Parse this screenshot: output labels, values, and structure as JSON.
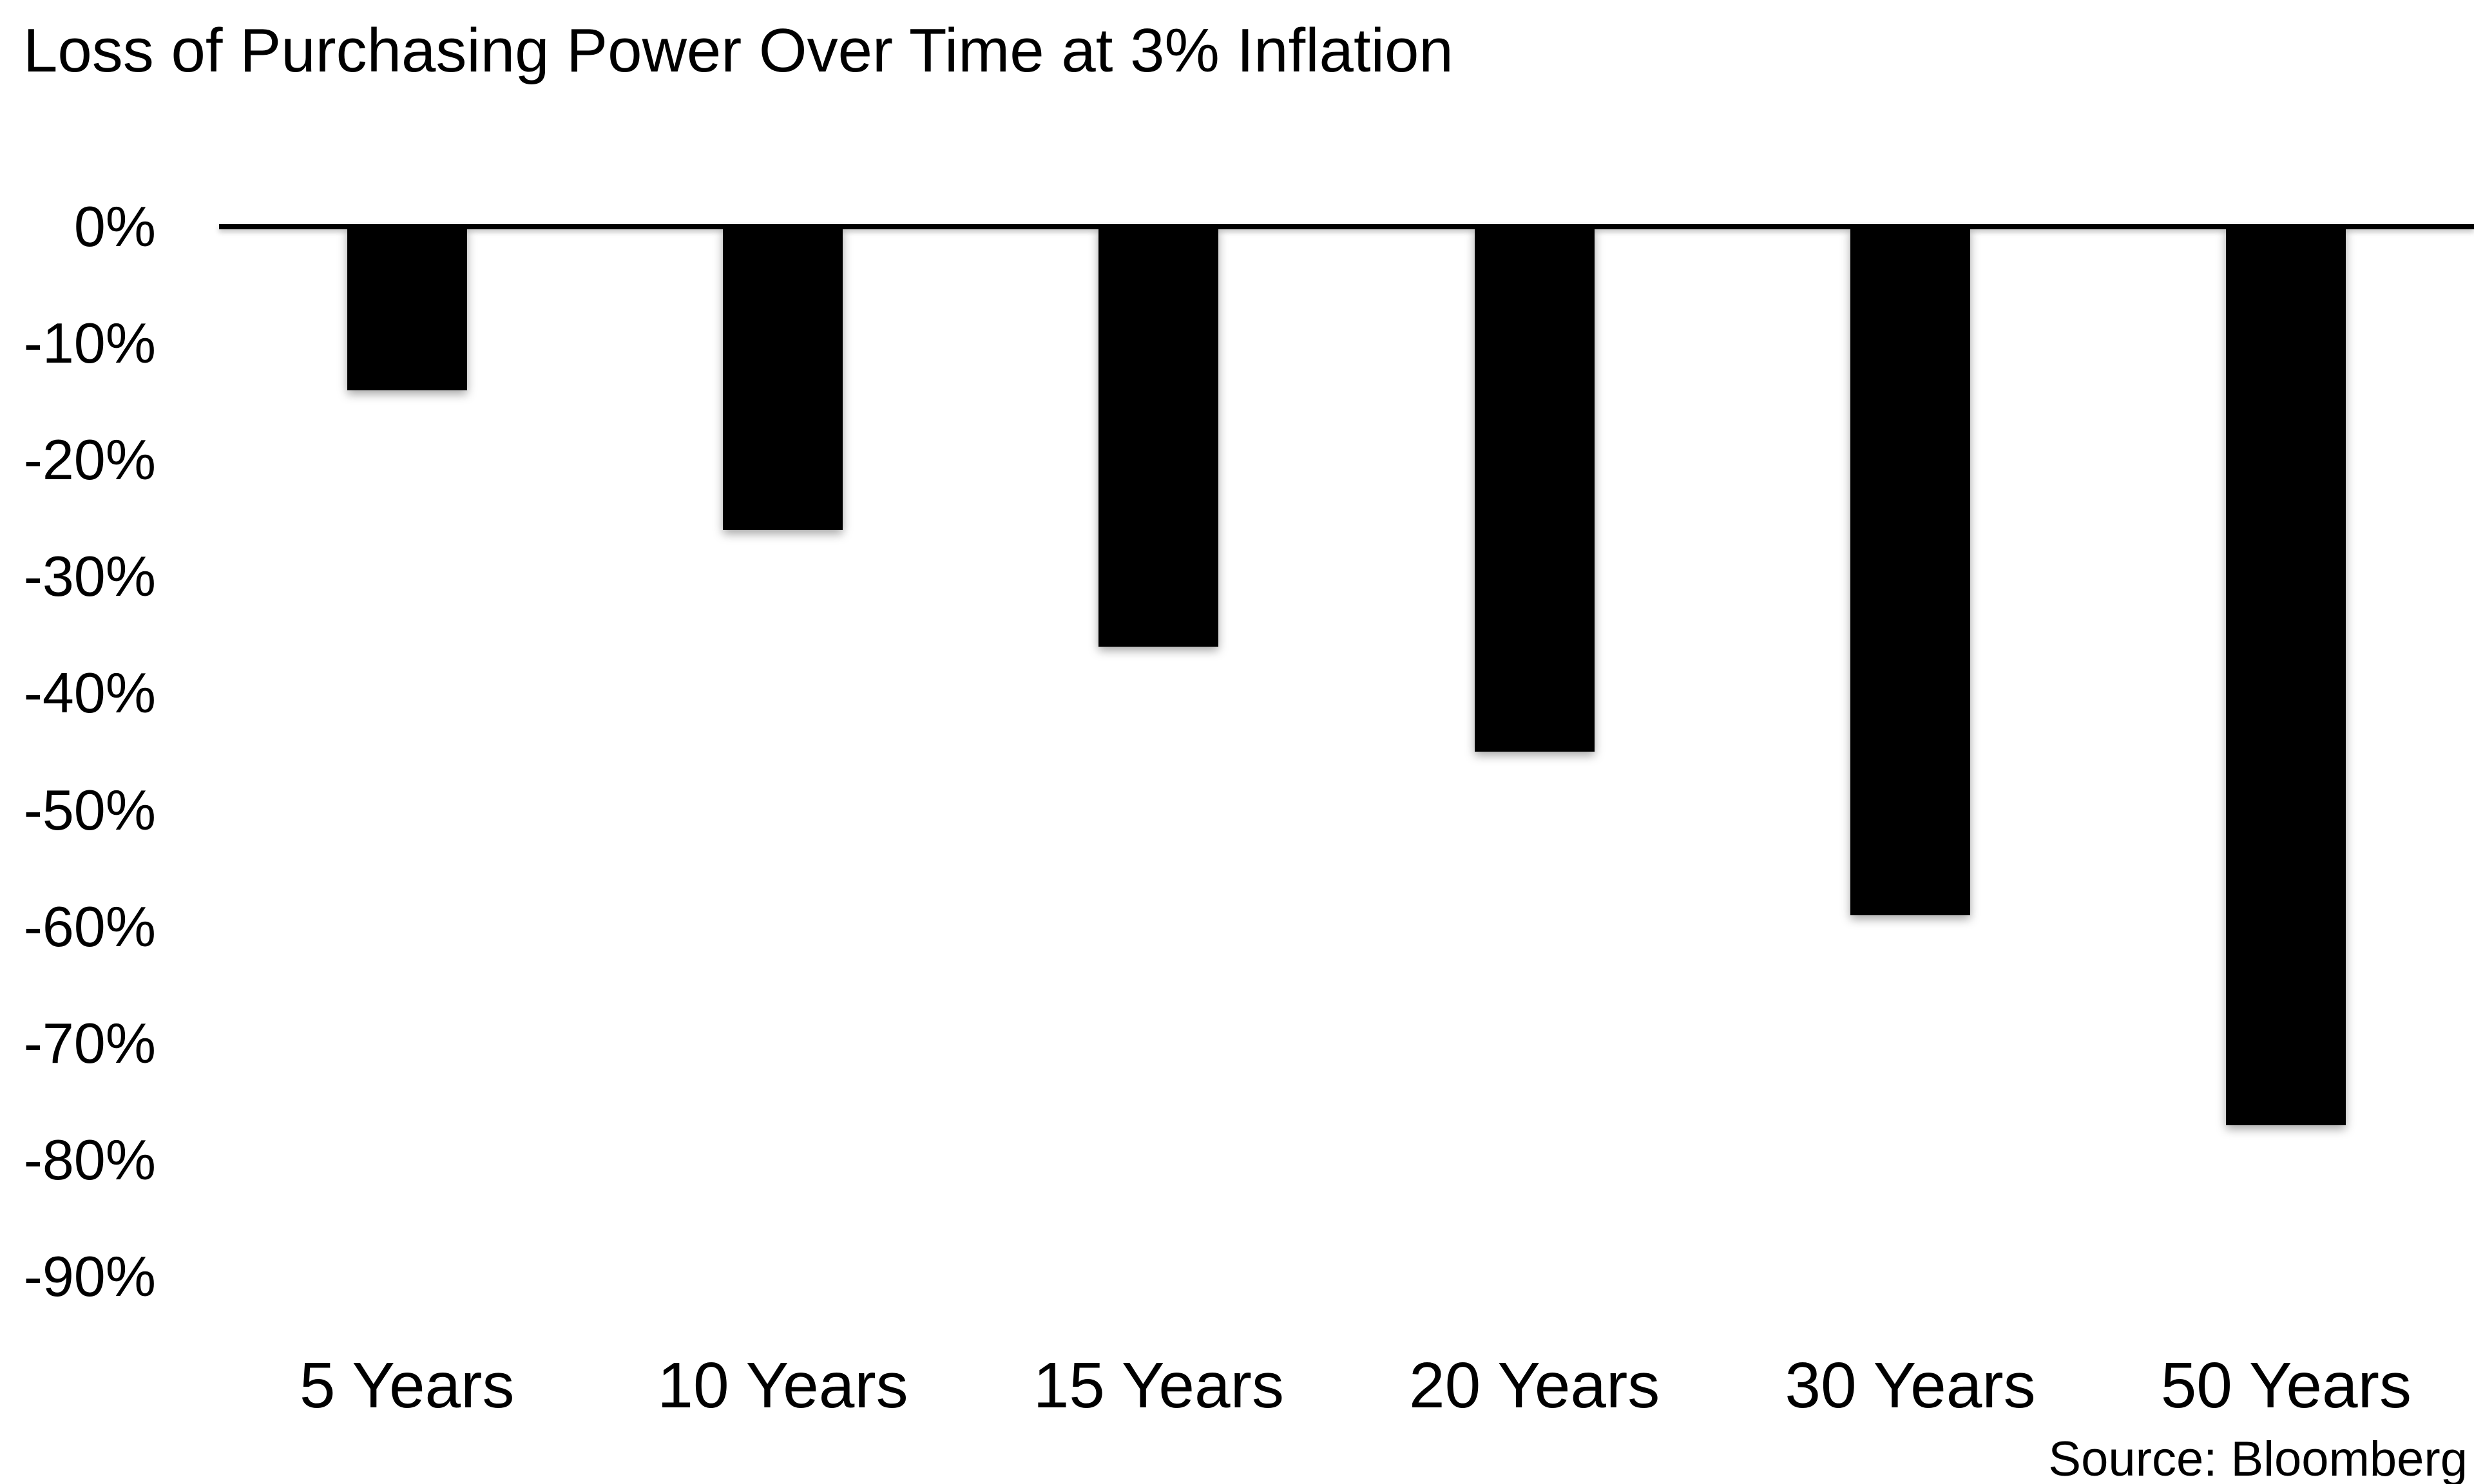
{
  "title": "Loss of Purchasing Power Over Time at 3% Inflation",
  "source_note": "Source: Bloomberg",
  "chart_data": {
    "type": "bar",
    "title": "Loss of Purchasing Power Over Time at 3% Inflation",
    "categories": [
      "5 Years",
      "10 Years",
      "15 Years",
      "20 Years",
      "30 Years",
      "50 Years"
    ],
    "values": [
      -14,
      -26,
      -36,
      -45,
      -59,
      -77
    ],
    "unit": "%",
    "y_ticks": [
      "0%",
      "-10%",
      "-20%",
      "-30%",
      "-40%",
      "-50%",
      "-60%",
      "-70%",
      "-80%",
      "-90%"
    ],
    "ylim": [
      0,
      -90
    ],
    "xlabel": "",
    "ylabel": "",
    "grid": "off",
    "legend": "none",
    "bar_color": "#000000",
    "axis_color": "#000000",
    "background_color": "#ffffff",
    "source": "Source: Bloomberg"
  }
}
